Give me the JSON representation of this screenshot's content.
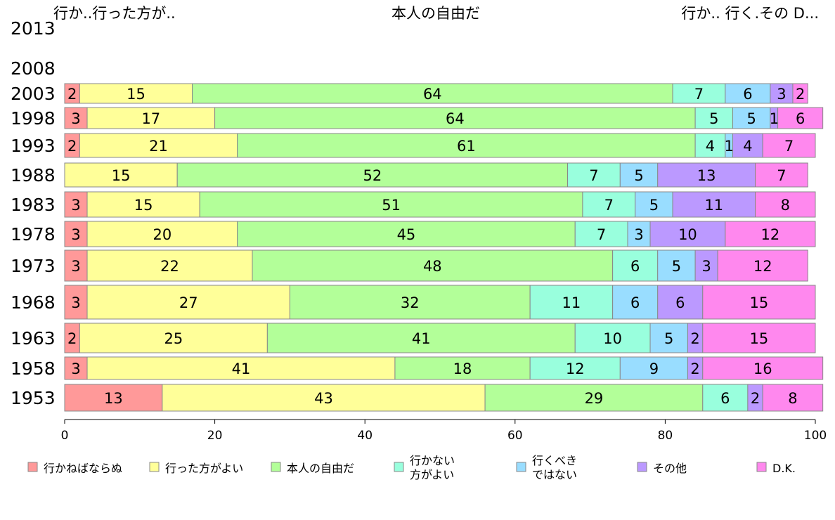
{
  "chart_data": {
    "type": "bar",
    "orientation": "horizontal",
    "stacked": true,
    "top_labels": {
      "left": "行か..行った方が..",
      "center": "本人の自由だ",
      "right": "行か.. 行く.その D..."
    },
    "categories": [
      "2013",
      "2008",
      "2003",
      "1998",
      "1993",
      "1988",
      "1983",
      "1978",
      "1973",
      "1968",
      "1963",
      "1958",
      "1953"
    ],
    "series": [
      {
        "name": "行かねばならぬ",
        "legend_label": "行かねばならぬ",
        "color": "#ff9999",
        "values": [
          null,
          null,
          2,
          3,
          2,
          0,
          3,
          3,
          3,
          3,
          2,
          3,
          13
        ]
      },
      {
        "name": "行った方がよい",
        "legend_label": "行った方がよい",
        "color": "#ffff99",
        "values": [
          null,
          null,
          15,
          17,
          21,
          15,
          15,
          20,
          22,
          27,
          25,
          41,
          43
        ]
      },
      {
        "name": "本人の自由だ",
        "legend_label": "本人の自由だ",
        "color": "#b3ff99",
        "values": [
          null,
          null,
          64,
          64,
          61,
          52,
          51,
          45,
          48,
          32,
          41,
          18,
          29
        ]
      },
      {
        "name": "行かない方がよい",
        "legend_label": "行かない\n方がよい",
        "color": "#99ffdd",
        "values": [
          null,
          null,
          7,
          5,
          4,
          7,
          7,
          7,
          6,
          11,
          10,
          12,
          6
        ]
      },
      {
        "name": "行くべきではない",
        "legend_label": "行くべき\nではない",
        "color": "#99ddff",
        "values": [
          null,
          null,
          6,
          5,
          1,
          5,
          5,
          3,
          5,
          6,
          5,
          9,
          0
        ]
      },
      {
        "name": "その他",
        "legend_label": "その他",
        "color": "#bb99ff",
        "values": [
          null,
          null,
          3,
          1,
          4,
          13,
          11,
          10,
          3,
          6,
          2,
          2,
          2
        ]
      },
      {
        "name": "D.K.",
        "legend_label": "D.K.",
        "color": "#ff88ee",
        "values": [
          null,
          null,
          2,
          6,
          7,
          7,
          8,
          12,
          12,
          15,
          15,
          16,
          8
        ]
      }
    ],
    "xlim": [
      0,
      100
    ],
    "xticks": [
      0,
      20,
      40,
      60,
      80,
      100
    ],
    "grid": false,
    "legend_position": "bottom"
  }
}
